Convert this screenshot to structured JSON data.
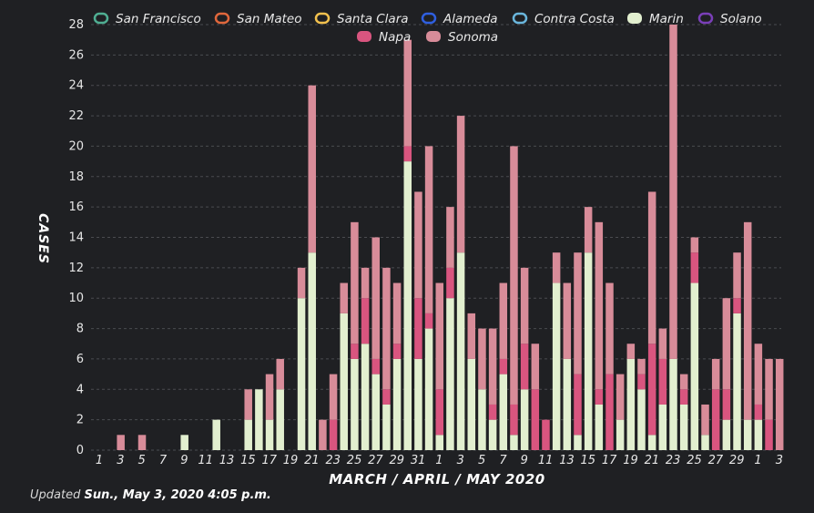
{
  "chart_data": {
    "type": "bar",
    "stacked": true,
    "xlabel": "MARCH / APRIL / MAY 2020",
    "ylabel": "CASES",
    "ylim": [
      0,
      28
    ],
    "yticks": [
      0,
      2,
      4,
      6,
      8,
      10,
      12,
      14,
      16,
      18,
      20,
      22,
      24,
      26,
      28
    ],
    "grid": "horizontal dashed",
    "legend_position": "top",
    "categories": [
      "1",
      "2",
      "3",
      "4",
      "5",
      "6",
      "7",
      "8",
      "9",
      "10",
      "11",
      "12",
      "13",
      "14",
      "15",
      "16",
      "17",
      "18",
      "19",
      "20",
      "21",
      "22",
      "23",
      "24",
      "25",
      "26",
      "27",
      "28",
      "29",
      "30",
      "31",
      "1",
      "2",
      "3",
      "4",
      "5",
      "6",
      "7",
      "8",
      "9",
      "10",
      "11",
      "12",
      "13",
      "14",
      "15",
      "16",
      "17",
      "18",
      "19",
      "20",
      "21",
      "22",
      "23",
      "24",
      "25",
      "26",
      "27",
      "28",
      "29",
      "30",
      "1",
      "2",
      "3"
    ],
    "tick_labels": [
      "1",
      "3",
      "5",
      "7",
      "9",
      "11",
      "13",
      "15",
      "17",
      "19",
      "21",
      "23",
      "25",
      "27",
      "29",
      "31",
      "1",
      "3",
      "5",
      "7",
      "9",
      "11",
      "13",
      "15",
      "17",
      "19",
      "21",
      "23",
      "25",
      "27",
      "29",
      "1",
      "3"
    ],
    "series": [
      {
        "name": "San Francisco",
        "color": "#4fae92",
        "values": [
          0,
          0,
          0,
          0,
          0,
          0,
          0,
          0,
          0,
          0,
          0,
          0,
          0,
          0,
          0,
          0,
          0,
          0,
          0,
          0,
          0,
          0,
          0,
          0,
          0,
          0,
          0,
          0,
          0,
          0,
          0,
          0,
          0,
          0,
          0,
          0,
          0,
          0,
          0,
          0,
          0,
          0,
          0,
          0,
          0,
          0,
          0,
          0,
          0,
          0,
          0,
          0,
          0,
          0,
          0,
          0,
          0,
          0,
          0,
          0,
          0,
          0,
          0,
          0
        ]
      },
      {
        "name": "San Mateo",
        "color": "#e0673c",
        "values": [
          0,
          0,
          0,
          0,
          0,
          0,
          0,
          0,
          0,
          0,
          0,
          0,
          0,
          0,
          0,
          0,
          0,
          0,
          0,
          0,
          0,
          0,
          0,
          0,
          0,
          0,
          0,
          0,
          0,
          0,
          0,
          0,
          0,
          0,
          0,
          0,
          0,
          0,
          0,
          0,
          0,
          0,
          0,
          0,
          0,
          0,
          0,
          0,
          0,
          0,
          0,
          0,
          0,
          0,
          0,
          0,
          0,
          0,
          0,
          0,
          0,
          0,
          0,
          0
        ]
      },
      {
        "name": "Santa Clara",
        "color": "#f2c14e",
        "values": [
          0,
          0,
          0,
          0,
          0,
          0,
          0,
          0,
          0,
          0,
          0,
          0,
          0,
          0,
          0,
          0,
          0,
          0,
          0,
          0,
          0,
          0,
          0,
          0,
          0,
          0,
          0,
          0,
          0,
          0,
          0,
          0,
          0,
          0,
          0,
          0,
          0,
          0,
          0,
          0,
          0,
          0,
          0,
          0,
          0,
          0,
          0,
          0,
          0,
          0,
          0,
          0,
          0,
          0,
          0,
          0,
          0,
          0,
          0,
          0,
          0,
          0,
          0,
          0
        ]
      },
      {
        "name": "Alameda",
        "color": "#2f5fe0",
        "values": [
          0,
          0,
          0,
          0,
          0,
          0,
          0,
          0,
          0,
          0,
          0,
          0,
          0,
          0,
          0,
          0,
          0,
          0,
          0,
          0,
          0,
          0,
          0,
          0,
          0,
          0,
          0,
          0,
          0,
          0,
          0,
          0,
          0,
          0,
          0,
          0,
          0,
          0,
          0,
          0,
          0,
          0,
          0,
          0,
          0,
          0,
          0,
          0,
          0,
          0,
          0,
          0,
          0,
          0,
          0,
          0,
          0,
          0,
          0,
          0,
          0,
          0,
          0,
          0
        ]
      },
      {
        "name": "Contra Costa",
        "color": "#6ab6dc",
        "values": [
          0,
          0,
          0,
          0,
          0,
          0,
          0,
          0,
          0,
          0,
          0,
          0,
          0,
          0,
          0,
          0,
          0,
          0,
          0,
          0,
          0,
          0,
          0,
          0,
          0,
          0,
          0,
          0,
          0,
          0,
          0,
          0,
          0,
          0,
          0,
          0,
          0,
          0,
          0,
          0,
          0,
          0,
          0,
          0,
          0,
          0,
          0,
          0,
          0,
          0,
          0,
          0,
          0,
          0,
          0,
          0,
          0,
          0,
          0,
          0,
          0,
          0,
          0,
          0
        ]
      },
      {
        "name": "Marin",
        "color": "#e2efcf",
        "values": [
          0,
          0,
          0,
          0,
          0,
          0,
          0,
          1,
          0,
          0,
          2,
          0,
          0,
          2,
          4,
          2,
          4,
          0,
          10,
          13,
          0,
          0,
          9,
          6,
          7,
          5,
          3,
          6,
          19,
          6,
          8,
          1,
          10,
          13,
          6,
          4,
          2,
          5,
          1,
          4,
          0,
          0,
          11,
          6,
          1,
          13,
          3,
          0,
          2,
          6,
          4,
          1,
          3,
          6,
          3,
          11,
          1,
          0,
          2,
          9,
          2,
          2,
          0,
          0
        ]
      },
      {
        "name": "Solano",
        "color": "#7a3fb8",
        "values": [
          0,
          0,
          0,
          0,
          0,
          0,
          0,
          0,
          0,
          0,
          0,
          0,
          0,
          0,
          0,
          0,
          0,
          0,
          0,
          0,
          0,
          0,
          0,
          0,
          0,
          0,
          0,
          0,
          0,
          0,
          0,
          0,
          0,
          0,
          0,
          0,
          0,
          0,
          0,
          0,
          0,
          0,
          0,
          0,
          0,
          0,
          0,
          0,
          0,
          0,
          0,
          0,
          0,
          0,
          0,
          0,
          0,
          0,
          0,
          0,
          0,
          0,
          0,
          0
        ]
      },
      {
        "name": "Napa",
        "color": "#d9557f",
        "values": [
          0,
          0,
          0,
          0,
          0,
          0,
          0,
          0,
          0,
          0,
          0,
          0,
          0,
          0,
          0,
          0,
          0,
          0,
          0,
          0,
          0,
          2,
          0,
          1,
          3,
          1,
          1,
          1,
          1,
          4,
          1,
          3,
          2,
          0,
          0,
          0,
          1,
          1,
          2,
          3,
          4,
          2,
          0,
          0,
          4,
          0,
          1,
          5,
          0,
          0,
          1,
          6,
          3,
          0,
          1,
          2,
          0,
          4,
          2,
          1,
          0,
          1,
          2,
          0
        ]
      },
      {
        "name": "Sonoma",
        "color": "#d88c99",
        "values": [
          0,
          1,
          0,
          1,
          0,
          0,
          0,
          0,
          0,
          0,
          0,
          0,
          0,
          2,
          0,
          3,
          2,
          0,
          2,
          11,
          2,
          3,
          2,
          8,
          2,
          8,
          8,
          4,
          7,
          7,
          11,
          7,
          4,
          9,
          3,
          4,
          5,
          5,
          17,
          5,
          3,
          0,
          2,
          5,
          8,
          3,
          11,
          6,
          3,
          1,
          1,
          10,
          2,
          22,
          1,
          1,
          2,
          2,
          6,
          3,
          13,
          4,
          4,
          6
        ]
      }
    ]
  },
  "footer": {
    "prefix": "Updated",
    "date": "Sun., May 3, 2020 4:05 p.m."
  }
}
